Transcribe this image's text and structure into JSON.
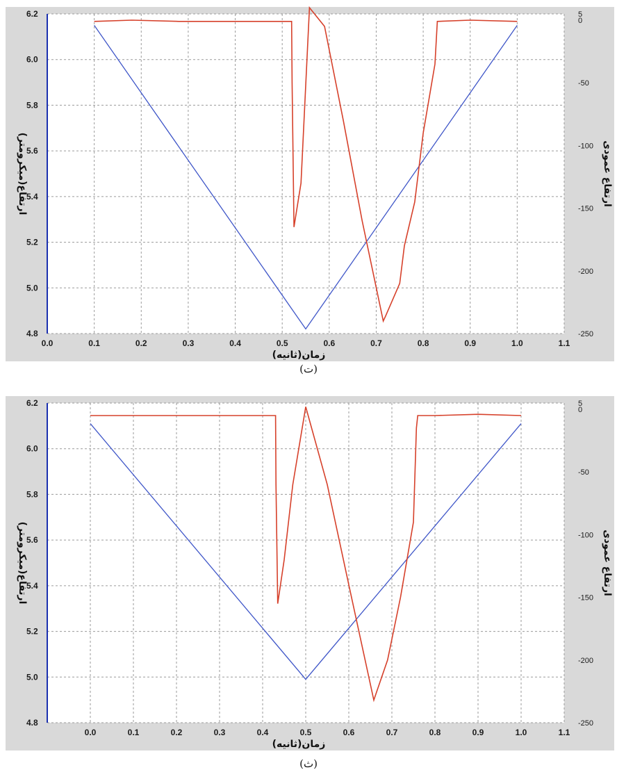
{
  "captions": {
    "top": "(ت)",
    "bottom": "(ث)"
  },
  "colors": {
    "height_line": "#3f56c8",
    "vertical_line": "#d6402a",
    "left_axis": "#1a2fb0"
  },
  "chart_data": [
    {
      "type": "line",
      "caption": "(ت)",
      "xlabel": "زمان(ثانیه)",
      "ylabel": "ارتفاع(میکرومتر)",
      "y2label": "ارتفاع عمودی",
      "xlim": [
        0.0,
        1.1
      ],
      "ylim": [
        4.8,
        6.2
      ],
      "y2lim": [
        -250,
        5
      ],
      "x_ticks": [
        "0.0",
        "0.1",
        "0.2",
        "0.3",
        "0.4",
        "0.5",
        "0.6",
        "0.7",
        "0.8",
        "0.9",
        "1.0",
        "1.1"
      ],
      "y_ticks": [
        "4.8",
        "5.0",
        "5.2",
        "5.4",
        "5.6",
        "5.8",
        "6.0",
        "6.2"
      ],
      "y2_ticks": [
        "5",
        "0",
        "-50",
        "-100",
        "-150",
        "-200",
        "-250"
      ],
      "grid": true,
      "series": [
        {
          "axis": "left",
          "color": "#3f56c8",
          "x": [
            0.1,
            0.55,
            1.0
          ],
          "y": [
            6.15,
            4.82,
            6.15
          ]
        },
        {
          "axis": "right",
          "color": "#d6402a",
          "x": [
            0.1,
            0.18,
            0.28,
            0.38,
            0.52,
            0.521,
            0.525,
            0.54,
            0.558,
            0.59,
            0.63,
            0.67,
            0.715,
            0.72,
            0.75,
            0.76,
            0.782,
            0.8,
            0.825,
            0.83,
            0.9,
            1.0
          ],
          "y": [
            -1,
            0,
            -1,
            -1,
            -1,
            -50,
            -165,
            -130,
            10,
            -5,
            -80,
            -160,
            -240,
            -236,
            -210,
            -180,
            -145,
            -90,
            -35,
            -1,
            0,
            -1
          ]
        }
      ]
    },
    {
      "type": "line",
      "caption": "(ث)",
      "xlabel": "زمان(ثانیه)",
      "ylabel": "ارتفاع(میکرومتر)",
      "y2label": "ارتفاع عمودی",
      "xlim": [
        -0.1,
        1.1
      ],
      "ylim": [
        4.8,
        6.2
      ],
      "y2lim": [
        -250,
        5
      ],
      "x_ticks": [
        "0.0",
        "0.1",
        "0.2",
        "0.3",
        "0.4",
        "0.5",
        "0.6",
        "0.7",
        "0.8",
        "0.9",
        "1.0",
        "1.1"
      ],
      "y_ticks": [
        "4.8",
        "5.0",
        "5.2",
        "5.4",
        "5.6",
        "5.8",
        "6.0",
        "6.2"
      ],
      "y2_ticks": [
        "5",
        "0",
        "-50",
        "-100",
        "-150",
        "-200",
        "-250"
      ],
      "grid": true,
      "series": [
        {
          "axis": "left",
          "color": "#3f56c8",
          "x": [
            0.0,
            0.5,
            1.0
          ],
          "y": [
            6.11,
            4.99,
            6.11
          ]
        },
        {
          "axis": "right",
          "color": "#d6402a",
          "x": [
            0.0,
            0.1,
            0.2,
            0.3,
            0.43,
            0.431,
            0.435,
            0.45,
            0.47,
            0.5,
            0.55,
            0.6,
            0.658,
            0.665,
            0.69,
            0.72,
            0.75,
            0.757,
            0.76,
            0.8,
            0.9,
            1.0
          ],
          "y": [
            -5,
            -5,
            -5,
            -5,
            -5,
            -60,
            -155,
            -120,
            -60,
            2,
            -60,
            -140,
            -232,
            -225,
            -200,
            -150,
            -90,
            -15,
            -5,
            -5,
            -4,
            -5
          ]
        }
      ]
    }
  ]
}
